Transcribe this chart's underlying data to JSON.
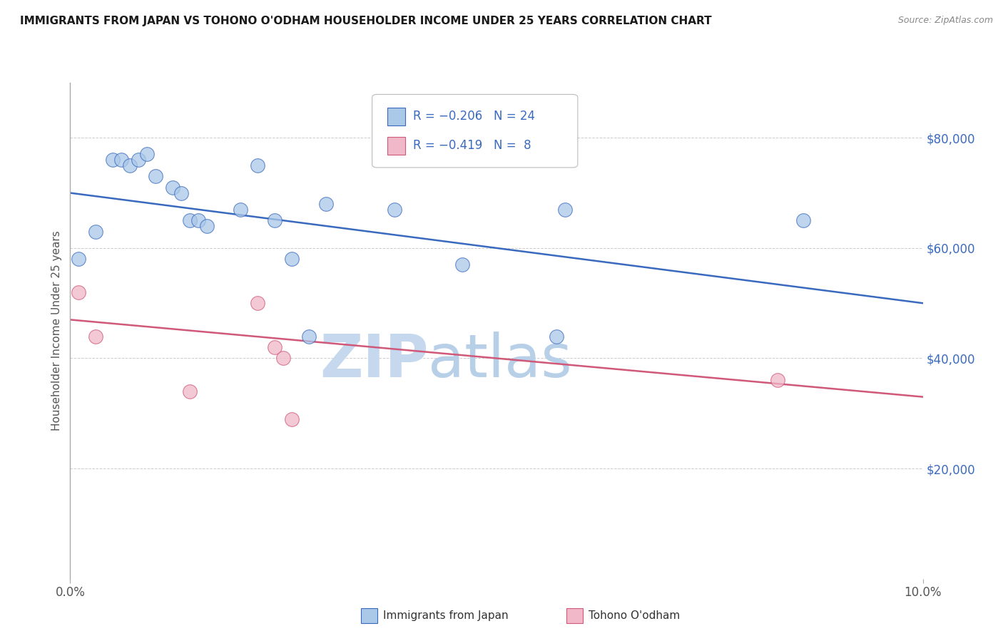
{
  "title": "IMMIGRANTS FROM JAPAN VS TOHONO O'ODHAM HOUSEHOLDER INCOME UNDER 25 YEARS CORRELATION CHART",
  "source": "Source: ZipAtlas.com",
  "ylabel": "Householder Income Under 25 years",
  "xlim": [
    0.0,
    0.1
  ],
  "ylim": [
    0,
    90000
  ],
  "yticks": [
    20000,
    40000,
    60000,
    80000
  ],
  "ytick_labels": [
    "$20,000",
    "$40,000",
    "$60,000",
    "$80,000"
  ],
  "watermark_zip": "ZIP",
  "watermark_atlas": "atlas",
  "blue_scatter_x": [
    0.001,
    0.003,
    0.005,
    0.006,
    0.007,
    0.008,
    0.009,
    0.01,
    0.012,
    0.013,
    0.014,
    0.015,
    0.016,
    0.02,
    0.022,
    0.024,
    0.026,
    0.028,
    0.03,
    0.038,
    0.046,
    0.057,
    0.058,
    0.086
  ],
  "blue_scatter_y": [
    58000,
    63000,
    76000,
    76000,
    75000,
    76000,
    77000,
    73000,
    71000,
    70000,
    65000,
    65000,
    64000,
    67000,
    75000,
    65000,
    58000,
    44000,
    68000,
    67000,
    57000,
    44000,
    67000,
    65000
  ],
  "pink_scatter_x": [
    0.001,
    0.003,
    0.014,
    0.022,
    0.024,
    0.025,
    0.026,
    0.083
  ],
  "pink_scatter_y": [
    52000,
    44000,
    34000,
    50000,
    42000,
    40000,
    29000,
    36000
  ],
  "blue_line_x": [
    0.0,
    0.1
  ],
  "blue_line_y": [
    70000,
    50000
  ],
  "pink_line_x": [
    0.0,
    0.1
  ],
  "pink_line_y": [
    47000,
    33000
  ],
  "blue_dot_color": "#aac8e8",
  "blue_line_color": "#3a6abf",
  "pink_dot_color": "#f0b8c8",
  "pink_line_color": "#d05878",
  "background_color": "#ffffff",
  "grid_color": "#cccccc",
  "title_color": "#1a1a1a",
  "axis_label_color": "#555555",
  "right_tick_color": "#3a6abf",
  "legend_text_color": "#3a6abf",
  "legend_n_color": "#3a6abf",
  "source_color": "#888888",
  "bottom_legend_color": "#333333"
}
